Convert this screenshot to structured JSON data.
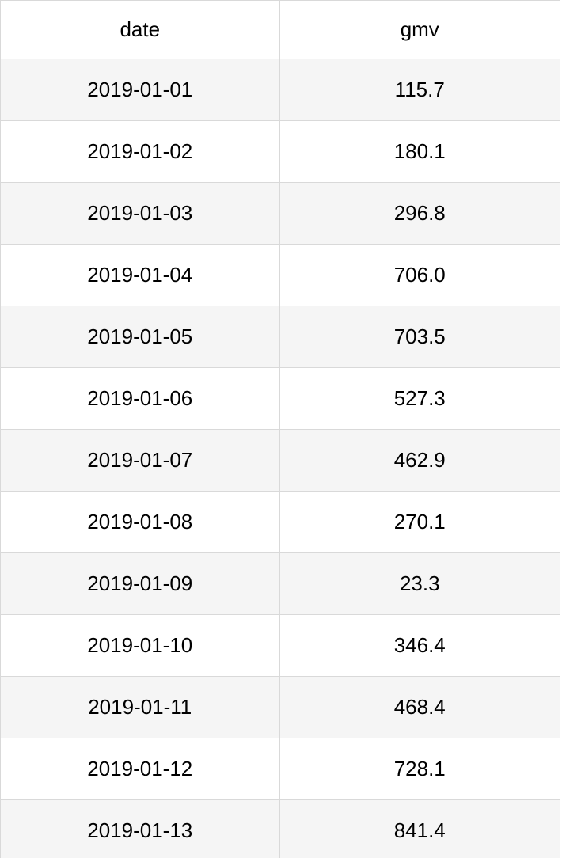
{
  "chart_data": {
    "type": "table",
    "columns": [
      "date",
      "gmv"
    ],
    "rows": [
      [
        "2019-01-01",
        "115.7"
      ],
      [
        "2019-01-02",
        "180.1"
      ],
      [
        "2019-01-03",
        "296.8"
      ],
      [
        "2019-01-04",
        "706.0"
      ],
      [
        "2019-01-05",
        "703.5"
      ],
      [
        "2019-01-06",
        "527.3"
      ],
      [
        "2019-01-07",
        "462.9"
      ],
      [
        "2019-01-08",
        "270.1"
      ],
      [
        "2019-01-09",
        "23.3"
      ],
      [
        "2019-01-10",
        "346.4"
      ],
      [
        "2019-01-11",
        "468.4"
      ],
      [
        "2019-01-12",
        "728.1"
      ],
      [
        "2019-01-13",
        "841.4"
      ]
    ]
  }
}
